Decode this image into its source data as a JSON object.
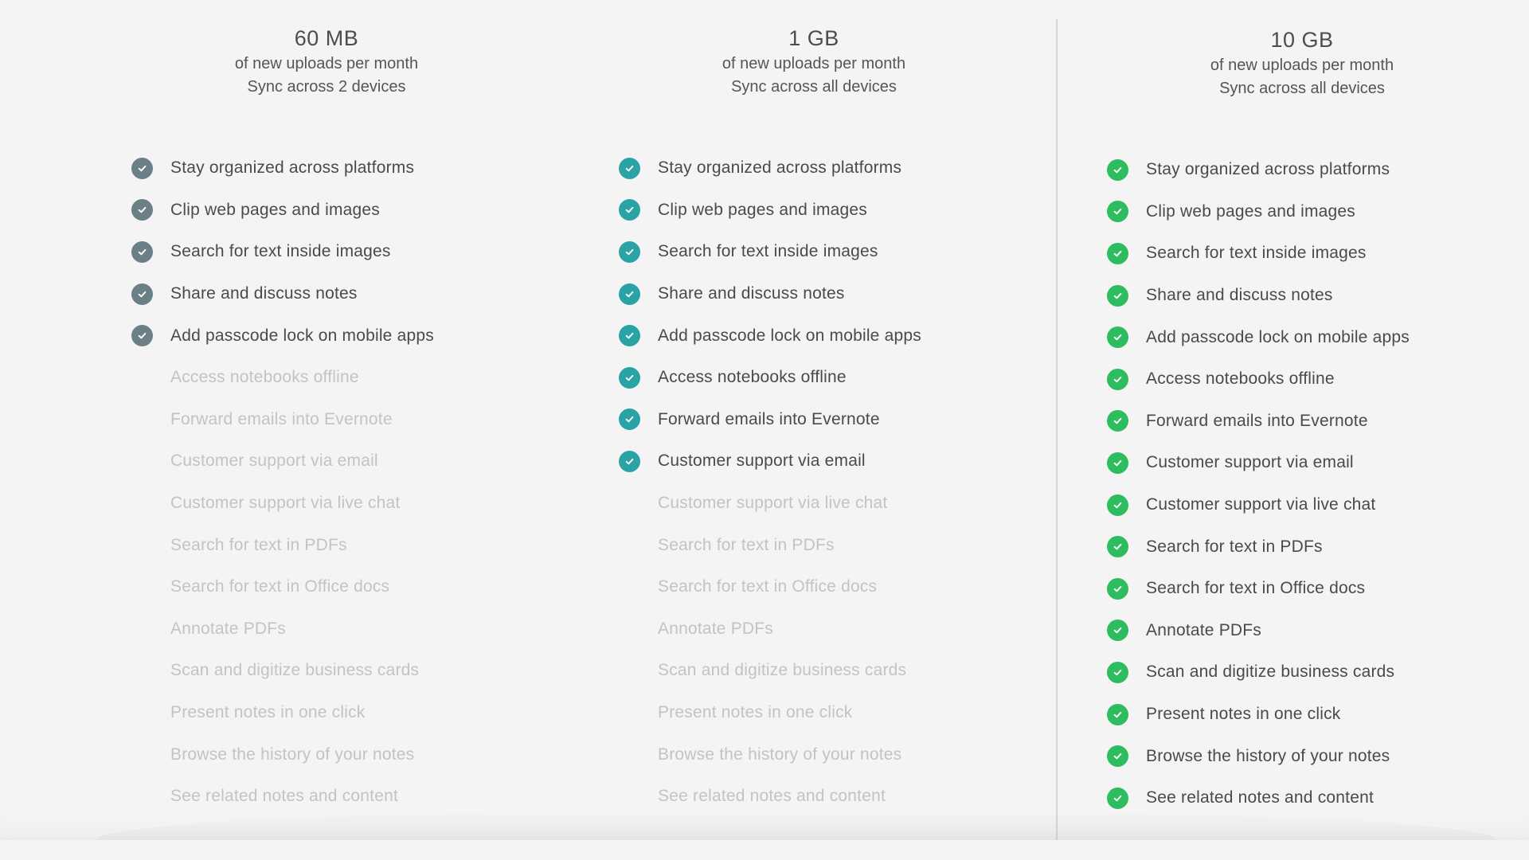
{
  "colors": {
    "basic": "#6b7f87",
    "plus": "#2aa3a6",
    "premium": "#2dbd5f",
    "text": "#4a4a4a",
    "disabled": "#c3c3c3"
  },
  "features": [
    "Stay organized across platforms",
    "Clip web pages and images",
    "Search for text inside images",
    "Share and discuss notes",
    "Add passcode lock on mobile apps",
    "Access notebooks offline",
    "Forward emails into Evernote",
    "Customer support via email",
    "Customer support via live chat",
    "Search for text in PDFs",
    "Search for text in Office docs",
    "Annotate PDFs",
    "Scan and digitize business cards",
    "Present notes in one click",
    "Browse the history of your notes",
    "See related notes and content"
  ],
  "plans": [
    {
      "storage": "60 MB",
      "uploads": "of new uploads per month",
      "sync": "Sync across 2 devices",
      "included_count": 5,
      "icon": "check-circle-icon"
    },
    {
      "storage": "1 GB",
      "uploads": "of new uploads per month",
      "sync": "Sync across all devices",
      "included_count": 8,
      "icon": "check-circle-icon"
    },
    {
      "storage": "10 GB",
      "uploads": "of new uploads per month",
      "sync": "Sync across all devices",
      "included_count": 16,
      "icon": "check-circle-icon"
    }
  ]
}
